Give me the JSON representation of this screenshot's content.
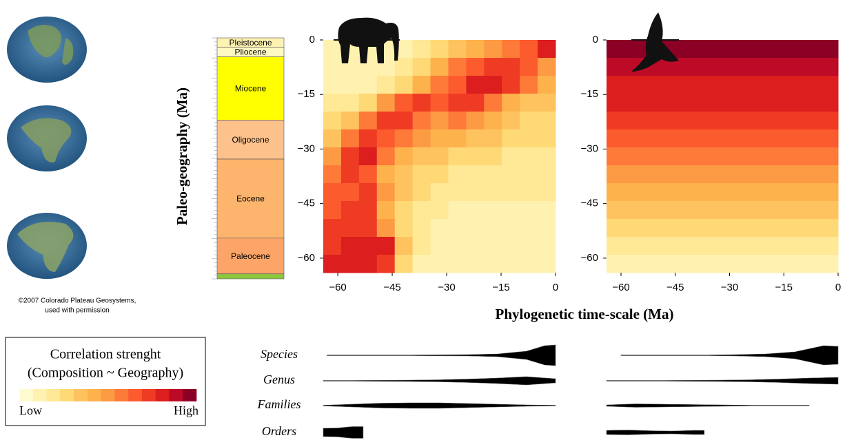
{
  "chart_data": [
    {
      "type": "heatmap",
      "xlabel": "Phylogenetic time-scale (Ma)",
      "ylabel": "Paleo-geography (Ma)",
      "xlim": [
        -64,
        0
      ],
      "ylim": [
        -64,
        0
      ],
      "xticks": [
        {
          "value": -60,
          "label": "−60"
        },
        {
          "value": -45,
          "label": "−45"
        },
        {
          "value": -30,
          "label": "−30"
        },
        {
          "value": -15,
          "label": "−15"
        },
        0
      ],
      "yticks": [
        0,
        {
          "value": -15,
          "label": "−15"
        },
        {
          "value": -30,
          "label": "−30"
        },
        {
          "value": -45,
          "label": "−45"
        },
        {
          "value": -60,
          "label": "−60"
        }
      ],
      "values": [
        [
          1,
          1,
          1,
          1,
          1,
          2,
          3,
          4,
          5,
          6,
          7,
          8,
          10
        ],
        [
          1,
          1,
          1,
          1,
          2,
          3,
          5,
          7,
          8,
          9,
          9,
          8,
          6
        ],
        [
          1,
          1,
          1,
          2,
          3,
          5,
          7,
          8,
          10,
          10,
          9,
          7,
          5
        ],
        [
          2,
          2,
          3,
          6,
          8,
          9,
          8,
          9,
          9,
          7,
          5,
          4,
          4
        ],
        [
          3,
          4,
          7,
          9,
          9,
          7,
          6,
          7,
          6,
          5,
          4,
          3,
          3
        ],
        [
          4,
          7,
          9,
          8,
          7,
          6,
          5,
          5,
          4,
          4,
          3,
          3,
          3
        ],
        [
          6,
          9,
          10,
          7,
          5,
          4,
          4,
          3,
          3,
          3,
          2,
          2,
          2
        ],
        [
          7,
          9,
          8,
          5,
          4,
          3,
          3,
          2,
          2,
          2,
          2,
          2,
          2
        ],
        [
          8,
          8,
          9,
          6,
          4,
          3,
          2,
          2,
          2,
          2,
          2,
          2,
          2
        ],
        [
          8,
          9,
          9,
          5,
          3,
          2,
          2,
          1,
          1,
          1,
          1,
          1,
          1
        ],
        [
          9,
          9,
          9,
          6,
          3,
          2,
          1,
          1,
          1,
          1,
          1,
          1,
          1
        ],
        [
          9,
          10,
          10,
          10,
          4,
          2,
          1,
          1,
          1,
          1,
          1,
          1,
          1
        ],
        [
          10,
          10,
          10,
          9,
          3,
          1,
          1,
          1,
          1,
          1,
          1,
          1,
          1
        ]
      ]
    },
    {
      "type": "heatmap",
      "xlim": [
        -64,
        0
      ],
      "ylim": [
        -64,
        0
      ],
      "xticks": [
        {
          "value": -60,
          "label": "−60"
        },
        {
          "value": -45,
          "label": "−45"
        },
        {
          "value": -30,
          "label": "−30"
        },
        {
          "value": -15,
          "label": "−15"
        },
        0
      ],
      "yticks": [
        0,
        {
          "value": -15,
          "label": "−15"
        },
        {
          "value": -30,
          "label": "−30"
        },
        {
          "value": -45,
          "label": "−45"
        },
        {
          "value": -60,
          "label": "−60"
        }
      ],
      "values": [
        [
          12
        ],
        [
          11
        ],
        [
          10
        ],
        [
          10
        ],
        [
          9
        ],
        [
          8
        ],
        [
          7
        ],
        [
          6
        ],
        [
          5
        ],
        [
          4
        ],
        [
          3
        ],
        [
          2
        ],
        [
          1
        ]
      ]
    }
  ],
  "colorscale": {
    "title": "Correlation strenght",
    "subtitle": "(Composition ~ Geography)",
    "low": "Low",
    "high": "High",
    "colors": [
      "#fffbd0",
      "#fff2b0",
      "#ffe896",
      "#fed976",
      "#fec35f",
      "#feb24c",
      "#fd9a44",
      "#fd7a38",
      "#fc5b2d",
      "#ef3b24",
      "#dc1e1e",
      "#bd0a26",
      "#8c0026"
    ]
  },
  "timescale": {
    "ylim": [
      -67.4,
      0
    ],
    "epochs": [
      {
        "name": "Pleistocene",
        "top": 0,
        "bottom": -2.6,
        "color": "#fef2b0"
      },
      {
        "name": "Pliocene",
        "top": -2.6,
        "bottom": -5.3,
        "color": "#fff9c4"
      },
      {
        "name": "Miocene",
        "top": -5.3,
        "bottom": -23,
        "color": "#ffff00"
      },
      {
        "name": "Oligocene",
        "top": -23,
        "bottom": -33.9,
        "color": "#fdc18b"
      },
      {
        "name": "Eocene",
        "top": -33.9,
        "bottom": -56,
        "color": "#fdb46c"
      },
      {
        "name": "Paleocene",
        "top": -56,
        "bottom": -66,
        "color": "#fda568"
      },
      {
        "top": -66,
        "bottom": -67.4,
        "color": "#8dc63f"
      }
    ]
  },
  "maps": {
    "caption": [
      "©2007 Colorado Plateau Geosystems,",
      "used with permission"
    ]
  },
  "spindles": {
    "labels": [
      "Species",
      "Genus",
      "Families",
      "Orders"
    ],
    "panels": [
      [
        {
          "x": [
            -63,
            -56,
            -48,
            -40,
            -32,
            -24,
            -16,
            -8,
            -3,
            0
          ],
          "widths": [
            1,
            1,
            1,
            1,
            1.5,
            2,
            4,
            12,
            28,
            30
          ]
        },
        {
          "x": [
            -64,
            -56,
            -48,
            -40,
            -32,
            -24,
            -16,
            -8,
            0
          ],
          "widths": [
            1,
            1,
            1.5,
            2,
            3,
            5,
            8,
            12,
            6
          ]
        },
        {
          "x": [
            -64,
            -56,
            -48,
            -40,
            -32,
            -24,
            -16,
            -8,
            0
          ],
          "widths": [
            1,
            4,
            7,
            8,
            8,
            6,
            4,
            2,
            1
          ]
        },
        {
          "x": [
            -64,
            -60,
            -56,
            -53
          ],
          "widths": [
            12,
            13,
            17,
            17
          ]
        }
      ],
      [
        {
          "x": [
            -60,
            -52,
            -44,
            -36,
            -28,
            -20,
            -12,
            -4,
            0
          ],
          "widths": [
            1,
            1,
            1,
            1,
            2,
            4,
            10,
            28,
            26
          ]
        },
        {
          "x": [
            -64,
            -56,
            -48,
            -40,
            -32,
            -24,
            -16,
            -8,
            0
          ],
          "widths": [
            1,
            1,
            1,
            1.5,
            2,
            3,
            5,
            8,
            10
          ]
        },
        {
          "x": [
            -64,
            -56,
            -48,
            -40,
            -32,
            -24,
            -16,
            -8
          ],
          "widths": [
            2,
            5,
            4,
            3,
            2,
            1,
            1,
            1
          ]
        },
        {
          "x": [
            -64,
            -58,
            -52,
            -46,
            -40,
            -37
          ],
          "widths": [
            6,
            7,
            5,
            4,
            6,
            6
          ]
        }
      ]
    ]
  }
}
